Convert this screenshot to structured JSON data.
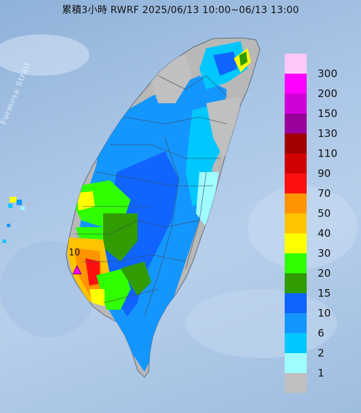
{
  "title": "累積3小時 RWRF 2025/06/13 10:00~06/13 13:00",
  "sea_label": "Formosa Strait",
  "station_label": "10",
  "legend": {
    "items": [
      {
        "label": "300",
        "color": "#ffc8f8"
      },
      {
        "label": "200",
        "color": "#ff00ff"
      },
      {
        "label": "150",
        "color": "#d000d8"
      },
      {
        "label": "130",
        "color": "#9a009a"
      },
      {
        "label": "110",
        "color": "#a00000"
      },
      {
        "label": "90",
        "color": "#d00000"
      },
      {
        "label": "70",
        "color": "#ff1010"
      },
      {
        "label": "50",
        "color": "#ff9400"
      },
      {
        "label": "40",
        "color": "#ffc400"
      },
      {
        "label": "30",
        "color": "#ffff00"
      },
      {
        "label": "20",
        "color": "#30ff00"
      },
      {
        "label": "15",
        "color": "#309c00"
      },
      {
        "label": "10",
        "color": "#1064ff"
      },
      {
        "label": "6",
        "color": "#1496ff"
      },
      {
        "label": "2",
        "color": "#00c8ff"
      },
      {
        "label": "1",
        "color": "#9ffcff"
      },
      {
        "label": "",
        "color": "#c0c0c0"
      }
    ]
  }
}
